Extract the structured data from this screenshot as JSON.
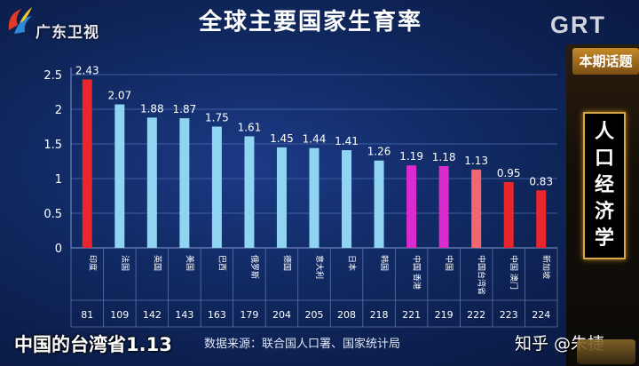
{
  "channel_logo": "广东卫视",
  "title": "全球主要国家生育率",
  "corner_logo": "GRT",
  "topic_tag": "本期话题",
  "topic": "人口经济学",
  "colors": {
    "red": "#e8262b",
    "light_blue": "#8fd4f0",
    "magenta": "#d92bd0",
    "pink": "#f0686f"
  },
  "chart_data": {
    "type": "bar",
    "title": "全球主要国家生育率",
    "categories": [
      "印度",
      "法国",
      "英国",
      "美国",
      "巴西",
      "俄罗斯",
      "德国",
      "意大利",
      "日本",
      "韩国",
      "中国 香港",
      "中国",
      "中国台湾省",
      "中国 澳门",
      "新加坡"
    ],
    "values": [
      2.43,
      2.07,
      1.88,
      1.87,
      1.75,
      1.61,
      1.45,
      1.44,
      1.41,
      1.26,
      1.19,
      1.18,
      1.13,
      0.95,
      0.83
    ],
    "value_labels": [
      "2.43",
      "2.07",
      "1.88",
      "1.87",
      "1.75",
      "1.61",
      "1.45",
      "1.44",
      "1.41",
      "1.26",
      "1.19",
      "1.18",
      "1.13",
      "0.95",
      "0.83"
    ],
    "bar_colors": [
      "#e8262b",
      "#8fd4f0",
      "#8fd4f0",
      "#8fd4f0",
      "#8fd4f0",
      "#8fd4f0",
      "#8fd4f0",
      "#8fd4f0",
      "#8fd4f0",
      "#8fd4f0",
      "#d92bd0",
      "#d92bd0",
      "#f0686f",
      "#e8262b",
      "#e8262b"
    ],
    "ranks": [
      "81",
      "109",
      "142",
      "143",
      "163",
      "179",
      "204",
      "205",
      "208",
      "218",
      "221",
      "219",
      "222",
      "223",
      "224"
    ],
    "ylim": [
      0,
      2.5
    ],
    "yticks": [
      "0",
      "0.5",
      "1",
      "1.5",
      "2",
      "2.5"
    ],
    "grid": true
  },
  "subtitle": "中国的台湾省1.13",
  "source": "数据来源：联合国人口署、国家统计局",
  "watermark": "知乎 @朱捷"
}
